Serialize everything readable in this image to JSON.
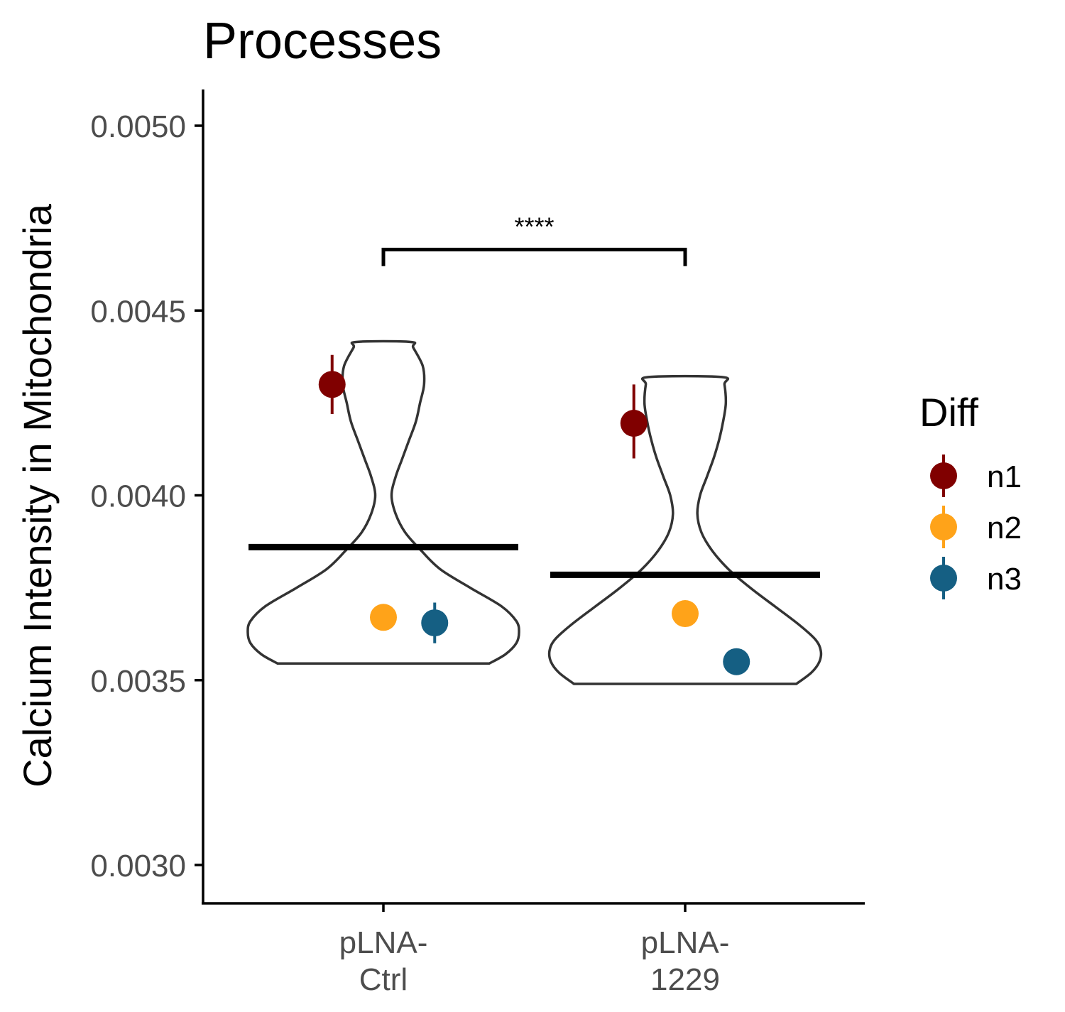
{
  "chart_data": {
    "type": "violin",
    "title": "Processes",
    "ylabel": "Calcium Intensity in Mitochondria",
    "xlabel": "",
    "ylim": [
      0.0029,
      0.0051
    ],
    "y_ticks": [
      {
        "value": 0.003,
        "label": "0.0030"
      },
      {
        "value": 0.0035,
        "label": "0.0035"
      },
      {
        "value": 0.004,
        "label": "0.0040"
      },
      {
        "value": 0.0045,
        "label": "0.0045"
      },
      {
        "value": 0.005,
        "label": "0.0050"
      }
    ],
    "grid": false,
    "legend": {
      "title": "Diff",
      "position": "right",
      "entries": [
        {
          "label": "n1",
          "color": "#800000"
        },
        {
          "label": "n2",
          "color": "#FFA319"
        },
        {
          "label": "n3",
          "color": "#155F83"
        }
      ]
    },
    "categories": [
      {
        "label_lines": [
          "pLNA-",
          "Ctrl"
        ],
        "mean": 0.00386,
        "violin": {
          "min": 0.003545,
          "max": 0.004415,
          "profile": [
            [
              0.003545,
              0.78
            ],
            [
              0.00357,
              0.9
            ],
            [
              0.0036,
              0.98
            ],
            [
              0.00363,
              1.0
            ],
            [
              0.00366,
              0.98
            ],
            [
              0.0037,
              0.87
            ],
            [
              0.00375,
              0.64
            ],
            [
              0.0038,
              0.42
            ],
            [
              0.00385,
              0.28
            ],
            [
              0.0039,
              0.16
            ],
            [
              0.00395,
              0.09
            ],
            [
              0.004,
              0.06
            ],
            [
              0.00405,
              0.09
            ],
            [
              0.0041,
              0.14
            ],
            [
              0.00415,
              0.19
            ],
            [
              0.0042,
              0.24
            ],
            [
              0.00425,
              0.27
            ],
            [
              0.0043,
              0.3
            ],
            [
              0.00435,
              0.29
            ],
            [
              0.0044,
              0.22
            ],
            [
              0.004415,
              0.2
            ]
          ]
        },
        "points": [
          {
            "series": "n1",
            "offset": -0.17,
            "y": 0.0043,
            "err_low": 0.00422,
            "err_high": 0.00438
          },
          {
            "series": "n2",
            "offset": 0.0,
            "y": 0.00367,
            "err_low": 0.00367,
            "err_high": 0.00367
          },
          {
            "series": "n3",
            "offset": 0.17,
            "y": 0.003655,
            "err_low": 0.0036,
            "err_high": 0.00371
          }
        ]
      },
      {
        "label_lines": [
          "pLNA-",
          "1229"
        ],
        "mean": 0.003785,
        "violin": {
          "min": 0.00349,
          "max": 0.00432,
          "profile": [
            [
              0.00349,
              0.82
            ],
            [
              0.00352,
              0.93
            ],
            [
              0.00355,
              0.99
            ],
            [
              0.00358,
              1.0
            ],
            [
              0.00361,
              0.96
            ],
            [
              0.00365,
              0.84
            ],
            [
              0.0037,
              0.66
            ],
            [
              0.00375,
              0.48
            ],
            [
              0.0038,
              0.32
            ],
            [
              0.00385,
              0.2
            ],
            [
              0.0039,
              0.12
            ],
            [
              0.00395,
              0.09
            ],
            [
              0.004,
              0.11
            ],
            [
              0.00405,
              0.16
            ],
            [
              0.0041,
              0.21
            ],
            [
              0.00415,
              0.25
            ],
            [
              0.0042,
              0.28
            ],
            [
              0.00425,
              0.3
            ],
            [
              0.0043,
              0.29
            ],
            [
              0.00432,
              0.27
            ]
          ]
        },
        "points": [
          {
            "series": "n1",
            "offset": -0.17,
            "y": 0.004195,
            "err_low": 0.0041,
            "err_high": 0.0043
          },
          {
            "series": "n2",
            "offset": 0.0,
            "y": 0.00368,
            "err_low": 0.00368,
            "err_high": 0.00368
          },
          {
            "series": "n3",
            "offset": 0.17,
            "y": 0.00355,
            "err_low": 0.00355,
            "err_high": 0.00355
          }
        ]
      }
    ],
    "significance": {
      "label": "****",
      "from": 0,
      "to": 1,
      "y": 0.004665,
      "tip": 4.5e-05
    }
  }
}
